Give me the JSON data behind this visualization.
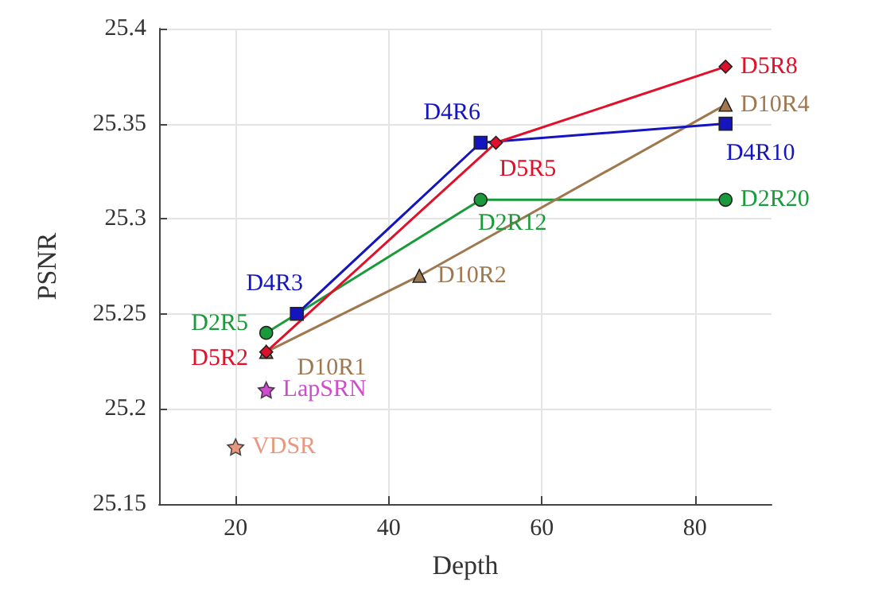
{
  "chart_data": {
    "type": "line",
    "xlabel": "Depth",
    "ylabel": "PSNR",
    "xlim": [
      10,
      90
    ],
    "xticks": [
      20,
      40,
      60,
      80
    ],
    "ylim": [
      25.15,
      25.4
    ],
    "yticks": [
      25.15,
      25.2,
      25.25,
      25.3,
      25.35,
      25.4
    ],
    "grid": true,
    "legend": false,
    "series": [
      {
        "color": "#1a9a3a",
        "marker": "circle",
        "x": [
          24,
          52,
          84
        ],
        "values": [
          25.24,
          25.31,
          25.31
        ],
        "value_labels": [
          "D2R5",
          "D2R12",
          "D2R20"
        ]
      },
      {
        "color": "#a07850",
        "marker": "triangle",
        "x": [
          24,
          44,
          84
        ],
        "values": [
          25.23,
          25.27,
          25.36
        ],
        "value_labels": [
          "D10R1",
          "D10R2",
          "D10R4"
        ]
      },
      {
        "color": "#1515c0",
        "marker": "square",
        "x": [
          28,
          52,
          84
        ],
        "values": [
          25.25,
          25.34,
          25.35
        ],
        "value_labels": [
          "D4R3",
          "D4R6",
          "D4R10"
        ]
      },
      {
        "color": "#e0102a",
        "marker": "diamond",
        "x": [
          24,
          54,
          84
        ],
        "values": [
          25.23,
          25.34,
          25.38
        ],
        "value_labels": [
          "D5R2",
          "D5R5",
          "D5R8"
        ]
      },
      {
        "type": "scatter",
        "name": "LapSRN",
        "color": "#c020c0",
        "marker": "star",
        "x": [
          24
        ],
        "values": [
          25.21
        ]
      },
      {
        "type": "scatter",
        "name": "VDSR",
        "color": "#e08060",
        "marker": "star",
        "x": [
          20
        ],
        "values": [
          25.18
        ]
      }
    ]
  }
}
